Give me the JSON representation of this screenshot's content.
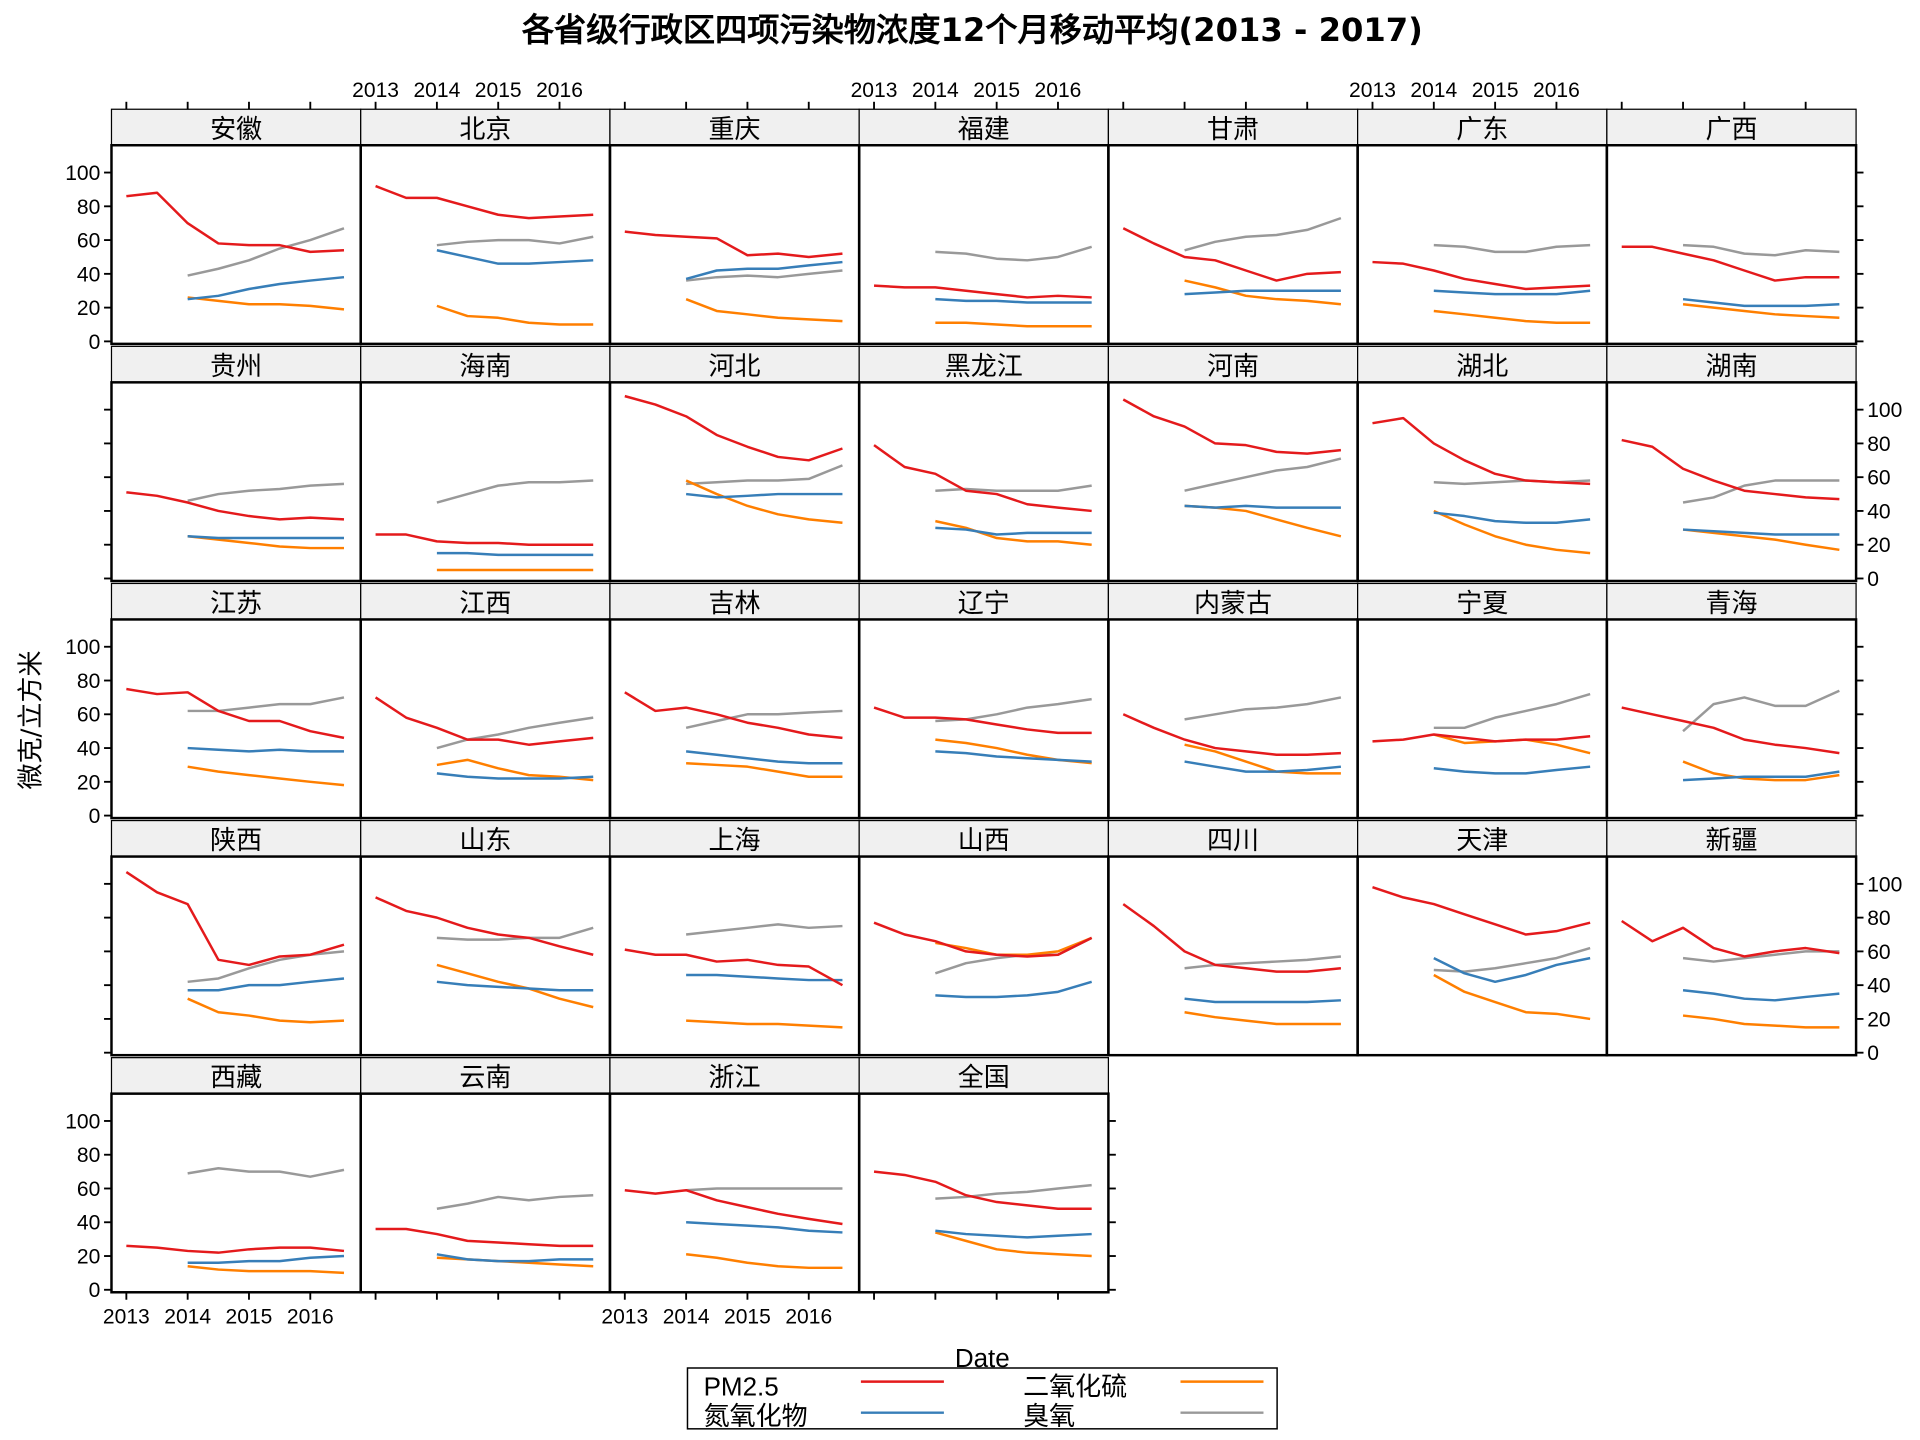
{
  "chart_data": {
    "type": "line",
    "title": "各省级行政区四项污染物浓度12个月移动平均(2013 - 2017)",
    "xlabel": "Date",
    "ylabel": "微克/立方米",
    "ylim": [
      0,
      115
    ],
    "xlim": [
      2012.75,
      2016.82
    ],
    "x_ticks": [
      2013,
      2014,
      2015,
      2016
    ],
    "x_tick_labels": [
      "2013",
      "2014",
      "2015",
      "2016"
    ],
    "y_ticks": [
      0,
      20,
      40,
      60,
      80,
      100
    ],
    "y_tick_labels": [
      "0",
      "20",
      "40",
      "60",
      "80",
      "100"
    ],
    "grid": false,
    "legend_position": "bottom",
    "pm_x": [
      2013.0,
      2013.5,
      2014.0,
      2014.5,
      2015.0,
      2015.5,
      2016.0,
      2016.55
    ],
    "other_x": [
      2014.0,
      2014.5,
      2015.0,
      2015.5,
      2016.0,
      2016.55
    ],
    "series_meta": [
      {
        "key": "pm",
        "name": "PM2.5",
        "color": "#e41a1c"
      },
      {
        "key": "no2",
        "name": "氮氧化物",
        "color": "#377eb8"
      },
      {
        "key": "so2",
        "name": "二氧化硫",
        "color": "#ff7f00"
      },
      {
        "key": "o3",
        "name": "臭氧",
        "color": "#999999"
      }
    ],
    "panels": [
      {
        "name": "安徽",
        "pm": [
          86,
          88,
          70,
          58,
          57,
          57,
          53,
          54
        ],
        "o3": [
          39,
          43,
          48,
          55,
          60,
          67
        ],
        "no2": [
          25,
          27,
          31,
          34,
          36,
          38
        ],
        "so2": [
          26,
          24,
          22,
          22,
          21,
          19
        ]
      },
      {
        "name": "北京",
        "pm": [
          92,
          85,
          85,
          80,
          75,
          73,
          74,
          75
        ],
        "o3": [
          57,
          59,
          60,
          60,
          58,
          62
        ],
        "no2": [
          54,
          50,
          46,
          46,
          47,
          48
        ],
        "so2": [
          21,
          15,
          14,
          11,
          10,
          10
        ]
      },
      {
        "name": "重庆",
        "pm": [
          65,
          63,
          62,
          61,
          51,
          52,
          50,
          52
        ],
        "o3": [
          36,
          38,
          39,
          38,
          40,
          42
        ],
        "no2": [
          37,
          42,
          43,
          43,
          45,
          47
        ],
        "so2": [
          25,
          18,
          16,
          14,
          13,
          12
        ]
      },
      {
        "name": "福建",
        "pm": [
          33,
          32,
          32,
          30,
          28,
          26,
          27,
          26
        ],
        "o3": [
          53,
          52,
          49,
          48,
          50,
          56
        ],
        "no2": [
          25,
          24,
          24,
          23,
          23,
          23
        ],
        "so2": [
          11,
          11,
          10,
          9,
          9,
          9
        ]
      },
      {
        "name": "甘肃",
        "pm": [
          67,
          58,
          50,
          48,
          42,
          36,
          40,
          41
        ],
        "o3": [
          54,
          59,
          62,
          63,
          66,
          73
        ],
        "no2": [
          28,
          29,
          30,
          30,
          30,
          30
        ],
        "so2": [
          36,
          32,
          27,
          25,
          24,
          22
        ]
      },
      {
        "name": "广东",
        "pm": [
          47,
          46,
          42,
          37,
          34,
          31,
          32,
          33
        ],
        "o3": [
          57,
          56,
          53,
          53,
          56,
          57
        ],
        "no2": [
          30,
          29,
          28,
          28,
          28,
          30
        ],
        "so2": [
          18,
          16,
          14,
          12,
          11,
          11
        ]
      },
      {
        "name": "广西",
        "pm": [
          56,
          56,
          52,
          48,
          42,
          36,
          38,
          38
        ],
        "o3": [
          57,
          56,
          52,
          51,
          54,
          53
        ],
        "no2": [
          25,
          23,
          21,
          21,
          21,
          22
        ],
        "so2": [
          22,
          20,
          18,
          16,
          15,
          14
        ]
      },
      {
        "name": "贵州",
        "pm": [
          51,
          49,
          45,
          40,
          37,
          35,
          36,
          35
        ],
        "o3": [
          46,
          50,
          52,
          53,
          55,
          56
        ],
        "no2": [
          25,
          24,
          24,
          24,
          24,
          24
        ],
        "so2": [
          25,
          23,
          21,
          19,
          18,
          18
        ]
      },
      {
        "name": "海南",
        "pm": [
          26,
          26,
          22,
          21,
          21,
          20,
          20,
          20
        ],
        "o3": [
          45,
          50,
          55,
          57,
          57,
          58
        ],
        "no2": [
          15,
          15,
          14,
          14,
          14,
          14
        ],
        "so2": [
          5,
          5,
          5,
          5,
          5,
          5
        ]
      },
      {
        "name": "河北",
        "pm": [
          108,
          103,
          96,
          85,
          78,
          72,
          70,
          77
        ],
        "o3": [
          56,
          57,
          58,
          58,
          59,
          67
        ],
        "no2": [
          50,
          48,
          49,
          50,
          50,
          50
        ],
        "so2": [
          58,
          50,
          43,
          38,
          35,
          33
        ]
      },
      {
        "name": "黑龙江",
        "pm": [
          79,
          66,
          62,
          52,
          50,
          44,
          42,
          40
        ],
        "o3": [
          52,
          53,
          52,
          52,
          52,
          55
        ],
        "no2": [
          30,
          29,
          26,
          27,
          27,
          27
        ],
        "so2": [
          34,
          30,
          24,
          22,
          22,
          20
        ]
      },
      {
        "name": "河南",
        "pm": [
          106,
          96,
          90,
          80,
          79,
          75,
          74,
          76
        ],
        "o3": [
          52,
          56,
          60,
          64,
          66,
          71
        ],
        "no2": [
          43,
          42,
          43,
          42,
          42,
          42
        ],
        "so2": [
          43,
          42,
          40,
          35,
          30,
          25
        ]
      },
      {
        "name": "湖北",
        "pm": [
          92,
          95,
          80,
          70,
          62,
          58,
          57,
          56
        ],
        "o3": [
          57,
          56,
          57,
          58,
          57,
          58
        ],
        "no2": [
          39,
          37,
          34,
          33,
          33,
          35
        ],
        "so2": [
          40,
          32,
          25,
          20,
          17,
          15
        ]
      },
      {
        "name": "湖南",
        "pm": [
          82,
          78,
          65,
          58,
          52,
          50,
          48,
          47
        ],
        "o3": [
          45,
          48,
          55,
          58,
          58,
          58
        ],
        "no2": [
          29,
          28,
          27,
          26,
          26,
          26
        ],
        "so2": [
          29,
          27,
          25,
          23,
          20,
          17
        ]
      },
      {
        "name": "江苏",
        "pm": [
          75,
          72,
          73,
          62,
          56,
          56,
          50,
          46
        ],
        "o3": [
          62,
          62,
          64,
          66,
          66,
          70
        ],
        "no2": [
          40,
          39,
          38,
          39,
          38,
          38
        ],
        "so2": [
          29,
          26,
          24,
          22,
          20,
          18
        ]
      },
      {
        "name": "江西",
        "pm": [
          70,
          58,
          52,
          45,
          45,
          42,
          44,
          46
        ],
        "o3": [
          40,
          45,
          48,
          52,
          55,
          58
        ],
        "no2": [
          25,
          23,
          22,
          22,
          22,
          23
        ],
        "so2": [
          30,
          33,
          28,
          24,
          23,
          21
        ]
      },
      {
        "name": "吉林",
        "pm": [
          73,
          62,
          64,
          60,
          55,
          52,
          48,
          46
        ],
        "o3": [
          52,
          56,
          60,
          60,
          61,
          62
        ],
        "no2": [
          38,
          36,
          34,
          32,
          31,
          31
        ],
        "so2": [
          31,
          30,
          29,
          26,
          23,
          23
        ]
      },
      {
        "name": "辽宁",
        "pm": [
          64,
          58,
          58,
          57,
          54,
          51,
          49,
          49
        ],
        "o3": [
          56,
          57,
          60,
          64,
          66,
          69
        ],
        "no2": [
          38,
          37,
          35,
          34,
          33,
          32
        ],
        "so2": [
          45,
          43,
          40,
          36,
          33,
          31
        ]
      },
      {
        "name": "内蒙古",
        "pm": [
          60,
          52,
          45,
          40,
          38,
          36,
          36,
          37
        ],
        "o3": [
          57,
          60,
          63,
          64,
          66,
          70
        ],
        "no2": [
          32,
          29,
          26,
          26,
          27,
          29
        ],
        "so2": [
          42,
          38,
          32,
          26,
          25,
          25
        ]
      },
      {
        "name": "宁夏",
        "pm": [
          44,
          45,
          48,
          46,
          44,
          45,
          45,
          47
        ],
        "o3": [
          52,
          52,
          58,
          62,
          66,
          72
        ],
        "no2": [
          28,
          26,
          25,
          25,
          27,
          29
        ],
        "so2": [
          48,
          43,
          44,
          45,
          42,
          37
        ]
      },
      {
        "name": "青海",
        "pm": [
          64,
          60,
          56,
          52,
          45,
          42,
          40,
          37
        ],
        "o3": [
          50,
          66,
          70,
          65,
          65,
          74
        ],
        "no2": [
          21,
          22,
          23,
          23,
          23,
          26
        ],
        "so2": [
          32,
          25,
          22,
          21,
          21,
          24
        ]
      },
      {
        "name": "陕西",
        "pm": [
          107,
          95,
          88,
          55,
          52,
          57,
          58,
          64
        ],
        "o3": [
          42,
          44,
          50,
          55,
          58,
          60
        ],
        "no2": [
          37,
          37,
          40,
          40,
          42,
          44
        ],
        "so2": [
          32,
          24,
          22,
          19,
          18,
          19
        ]
      },
      {
        "name": "山东",
        "pm": [
          92,
          84,
          80,
          74,
          70,
          68,
          63,
          58
        ],
        "o3": [
          68,
          67,
          67,
          68,
          68,
          74
        ],
        "no2": [
          42,
          40,
          39,
          38,
          37,
          37
        ],
        "so2": [
          52,
          47,
          42,
          38,
          32,
          27
        ]
      },
      {
        "name": "上海",
        "pm": [
          61,
          58,
          58,
          54,
          55,
          52,
          51,
          40
        ],
        "o3": [
          70,
          72,
          74,
          76,
          74,
          75
        ],
        "no2": [
          46,
          46,
          45,
          44,
          43,
          43
        ],
        "so2": [
          19,
          18,
          17,
          17,
          16,
          15
        ]
      },
      {
        "name": "山西",
        "pm": [
          77,
          70,
          66,
          60,
          58,
          57,
          58,
          68
        ],
        "o3": [
          47,
          53,
          56,
          58,
          58,
          68
        ],
        "no2": [
          34,
          33,
          33,
          34,
          36,
          42
        ],
        "so2": [
          65,
          62,
          58,
          58,
          60,
          68
        ]
      },
      {
        "name": "四川",
        "pm": [
          88,
          75,
          60,
          52,
          50,
          48,
          48,
          50
        ],
        "o3": [
          50,
          52,
          53,
          54,
          55,
          57
        ],
        "no2": [
          32,
          30,
          30,
          30,
          30,
          31
        ],
        "so2": [
          24,
          21,
          19,
          17,
          17,
          17
        ]
      },
      {
        "name": "天津",
        "pm": [
          98,
          92,
          88,
          82,
          76,
          70,
          72,
          77
        ],
        "o3": [
          49,
          48,
          50,
          53,
          56,
          62
        ],
        "no2": [
          56,
          47,
          42,
          46,
          52,
          56
        ],
        "so2": [
          46,
          36,
          30,
          24,
          23,
          20
        ]
      },
      {
        "name": "新疆",
        "pm": [
          78,
          66,
          74,
          62,
          57,
          60,
          62,
          59
        ],
        "o3": [
          56,
          54,
          56,
          58,
          60,
          60
        ],
        "no2": [
          37,
          35,
          32,
          31,
          33,
          35
        ],
        "so2": [
          22,
          20,
          17,
          16,
          15,
          15
        ]
      },
      {
        "name": "西藏",
        "pm": [
          26,
          25,
          23,
          22,
          24,
          25,
          25,
          23
        ],
        "o3": [
          69,
          72,
          70,
          70,
          67,
          71
        ],
        "no2": [
          16,
          16,
          17,
          17,
          19,
          20
        ],
        "so2": [
          14,
          12,
          11,
          11,
          11,
          10
        ]
      },
      {
        "name": "云南",
        "pm": [
          36,
          36,
          33,
          29,
          28,
          27,
          26,
          26
        ],
        "o3": [
          48,
          51,
          55,
          53,
          55,
          56
        ],
        "no2": [
          21,
          18,
          17,
          17,
          18,
          18
        ],
        "so2": [
          19,
          18,
          17,
          16,
          15,
          14
        ]
      },
      {
        "name": "浙江",
        "pm": [
          59,
          57,
          59,
          53,
          49,
          45,
          42,
          39
        ],
        "o3": [
          59,
          60,
          60,
          60,
          60,
          60
        ],
        "no2": [
          40,
          39,
          38,
          37,
          35,
          34
        ],
        "so2": [
          21,
          19,
          16,
          14,
          13,
          13
        ]
      },
      {
        "name": "全国",
        "pm": [
          70,
          68,
          64,
          56,
          52,
          50,
          48,
          48
        ],
        "o3": [
          54,
          55,
          57,
          58,
          60,
          62
        ],
        "no2": [
          35,
          33,
          32,
          31,
          32,
          33
        ],
        "so2": [
          34,
          29,
          24,
          22,
          21,
          20
        ]
      }
    ]
  }
}
